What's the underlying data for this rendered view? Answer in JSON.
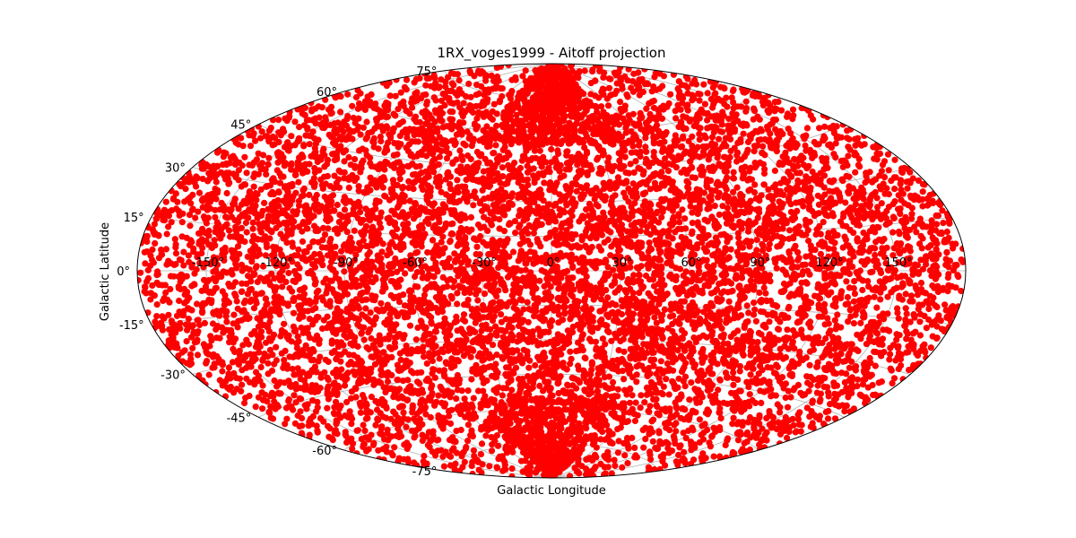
{
  "chart_data": {
    "type": "scatter",
    "projection": "aitoff",
    "title": "1RX_voges1999 - Aitoff projection",
    "xlabel": "Galactic Longitude",
    "ylabel": "Galactic Latitude",
    "xlim": [
      -180,
      180
    ],
    "ylim": [
      -90,
      90
    ],
    "grid": true,
    "x_ticks": [
      -150,
      -120,
      -90,
      -60,
      -30,
      0,
      30,
      60,
      90,
      120,
      150
    ],
    "x_tick_labels": [
      "-150°",
      "-120°",
      "-90°",
      "-60°",
      "-30°",
      "0°",
      "30°",
      "60°",
      "90°",
      "120°",
      "150°"
    ],
    "y_ticks": [
      -75,
      -60,
      -45,
      -30,
      -15,
      0,
      15,
      30,
      45,
      60,
      75
    ],
    "y_tick_labels": [
      "-75°",
      "-60°",
      "-45°",
      "-30°",
      "-15°",
      "0°",
      "15°",
      "30°",
      "45°",
      "60°",
      "75°"
    ],
    "series": [
      {
        "color": "#ff0000",
        "marker": "circle",
        "approx_point_count": 18811,
        "distribution": "uniform over full sky, with denser clustering near the north and south ecliptic poles (upper and lower center of the map)",
        "sample_points": [
          {
            "l": 0,
            "b": 0
          },
          {
            "l": 45,
            "b": 20
          },
          {
            "l": -60,
            "b": -35
          },
          {
            "l": 120,
            "b": 10
          },
          {
            "l": -150,
            "b": 40
          },
          {
            "l": 10,
            "b": 70
          },
          {
            "l": -10,
            "b": -70
          },
          {
            "l": 90,
            "b": -50
          },
          {
            "l": -100,
            "b": 55
          },
          {
            "l": 160,
            "b": -20
          },
          {
            "l": -170,
            "b": 5
          },
          {
            "l": 30,
            "b": -80
          }
        ]
      }
    ]
  }
}
